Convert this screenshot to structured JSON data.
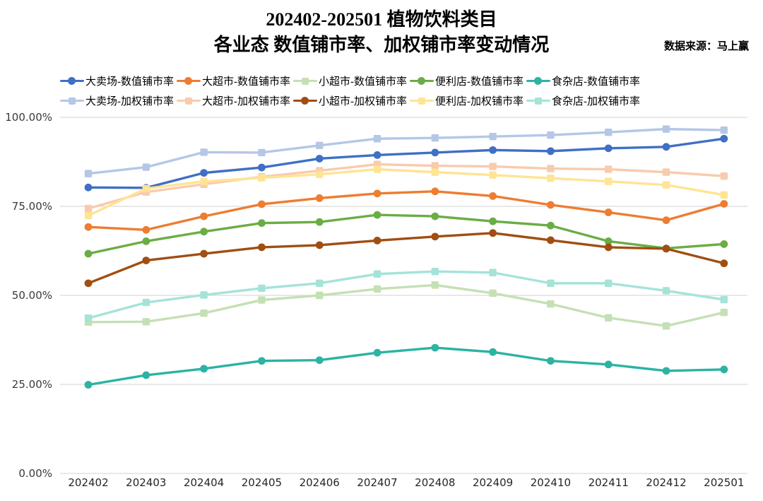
{
  "header": {
    "title_line1": "202402-202501 植物饮料类目",
    "title_line2": "各业态 数值铺市率、加权铺市率变动情况",
    "source": "数据来源：马上赢"
  },
  "chart_data": {
    "type": "line",
    "title": "202402-202501 植物饮料类目 各业态 数值铺市率、加权铺市率变动情况",
    "xlabel": "",
    "ylabel": "",
    "unit": "%",
    "ylim": [
      0,
      100
    ],
    "grid": true,
    "grid_color": "#D9D9D9",
    "axis_label_color": "#3A3A3A",
    "legend_position": "top-left",
    "legend_rows": 2,
    "y_ticks": [
      "0.00%",
      "25.00%",
      "50.00%",
      "75.00%",
      "100.00%"
    ],
    "categories": [
      "202402",
      "202403",
      "202404",
      "202405",
      "202406",
      "202407",
      "202408",
      "202409",
      "202410",
      "202411",
      "202412",
      "202501"
    ],
    "series": [
      {
        "name": "大卖场-数值铺市率",
        "color": "#3F6FC6",
        "marker": "circle",
        "values": [
          80.3,
          80.2,
          84.4,
          85.9,
          88.4,
          89.4,
          90.1,
          90.8,
          90.5,
          91.3,
          91.7,
          94.0
        ]
      },
      {
        "name": "大超市-数值铺市率",
        "color": "#ED7D31",
        "marker": "circle",
        "values": [
          69.2,
          68.4,
          72.2,
          75.6,
          77.3,
          78.6,
          79.2,
          77.9,
          75.4,
          73.3,
          71.1,
          75.7
        ]
      },
      {
        "name": "小超市-数值铺市率",
        "color": "#C5E0B4",
        "marker": "square",
        "values": [
          42.5,
          42.6,
          45.0,
          48.7,
          50.0,
          51.8,
          52.9,
          50.6,
          47.6,
          43.7,
          41.4,
          45.2
        ]
      },
      {
        "name": "便利店-数值铺市率",
        "color": "#6BAD45",
        "marker": "circle",
        "values": [
          61.7,
          65.2,
          67.9,
          70.3,
          70.6,
          72.6,
          72.2,
          70.8,
          69.6,
          65.2,
          63.2,
          64.4
        ]
      },
      {
        "name": "食杂店-数值铺市率",
        "color": "#2BB3A3",
        "marker": "circle",
        "values": [
          24.9,
          27.6,
          29.4,
          31.6,
          31.8,
          33.9,
          35.3,
          34.1,
          31.6,
          30.6,
          28.8,
          29.2
        ]
      },
      {
        "name": "大卖场-加权铺市率",
        "color": "#B4C7E7",
        "marker": "square",
        "values": [
          84.2,
          86.0,
          90.2,
          90.1,
          92.1,
          94.0,
          94.2,
          94.6,
          95.0,
          95.8,
          96.7,
          96.4
        ]
      },
      {
        "name": "大超市-加权铺市率",
        "color": "#F8CBAD",
        "marker": "square",
        "values": [
          74.4,
          79.0,
          81.2,
          83.3,
          85.0,
          86.8,
          86.4,
          86.2,
          85.6,
          85.4,
          84.6,
          83.5
        ]
      },
      {
        "name": "小超市-加权铺市率",
        "color": "#A04E12",
        "marker": "circle",
        "values": [
          53.4,
          59.8,
          61.7,
          63.5,
          64.1,
          65.4,
          66.5,
          67.5,
          65.5,
          63.5,
          63.1,
          59.0
        ]
      },
      {
        "name": "便利店-加权铺市率",
        "color": "#FFE494",
        "marker": "square",
        "values": [
          72.4,
          80.0,
          82.0,
          83.0,
          84.0,
          85.4,
          84.6,
          83.8,
          82.9,
          82.0,
          81.0,
          78.2
        ]
      },
      {
        "name": "食杂店-加权铺市率",
        "color": "#A5E3D8",
        "marker": "square",
        "values": [
          43.6,
          48.0,
          50.1,
          52.0,
          53.4,
          56.0,
          56.7,
          56.4,
          53.4,
          53.4,
          51.3,
          48.8
        ]
      }
    ]
  }
}
